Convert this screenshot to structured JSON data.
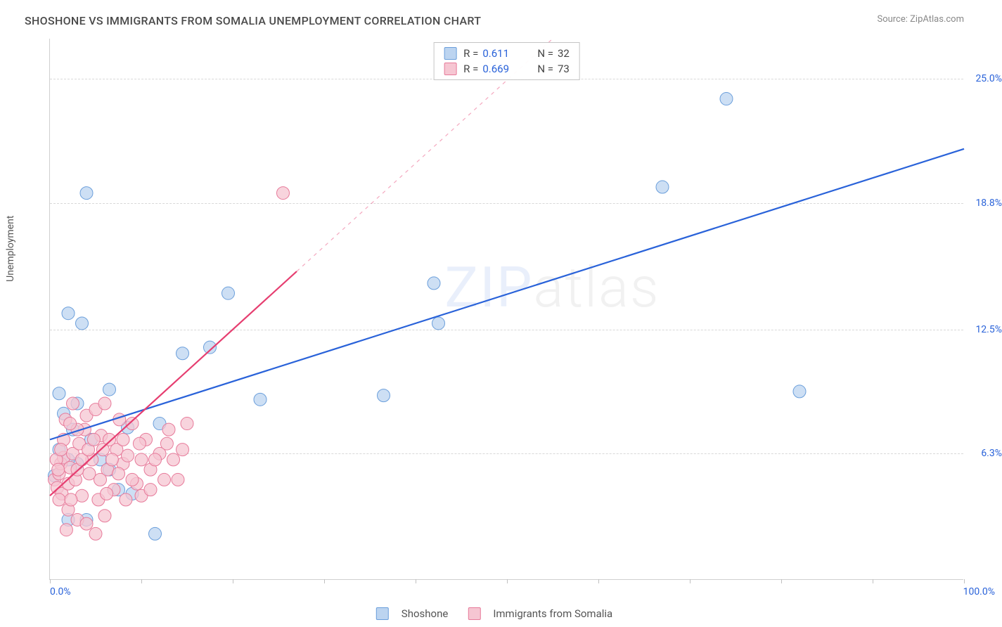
{
  "title": "SHOSHONE VS IMMIGRANTS FROM SOMALIA UNEMPLOYMENT CORRELATION CHART",
  "source_label": "Source: ZipAtlas.com",
  "y_axis_label": "Unemployment",
  "x_axis": {
    "min_label": "0.0%",
    "max_label": "100.0%",
    "min": 0,
    "max": 100,
    "tick_positions": [
      0,
      10,
      20,
      30,
      40,
      50,
      60,
      70,
      80,
      90,
      100
    ]
  },
  "y_axis": {
    "min": 0,
    "max": 27,
    "ticks": [
      {
        "value": 6.3,
        "label": "6.3%"
      },
      {
        "value": 12.5,
        "label": "12.5%"
      },
      {
        "value": 18.8,
        "label": "18.8%"
      },
      {
        "value": 25.0,
        "label": "25.0%"
      }
    ]
  },
  "watermark": {
    "part1": "ZIP",
    "part2": "atlas"
  },
  "series": [
    {
      "id": "shoshone",
      "label": "Shoshone",
      "fill_color": "#bcd4f0",
      "stroke_color": "#6a9edb",
      "line_color": "#2962d9",
      "r_label": "R =",
      "r_value": "0.611",
      "n_label": "N =",
      "n_value": "32",
      "trend": {
        "x1": 0,
        "y1": 7.0,
        "x2": 100,
        "y2": 21.5,
        "solid_end_x": 100
      },
      "marker_radius": 9,
      "points": [
        {
          "x": 1,
          "y": 9.3
        },
        {
          "x": 4,
          "y": 19.3
        },
        {
          "x": 2,
          "y": 13.3
        },
        {
          "x": 3.5,
          "y": 12.8
        },
        {
          "x": 6.5,
          "y": 9.5
        },
        {
          "x": 1.5,
          "y": 8.3
        },
        {
          "x": 2.5,
          "y": 7.5
        },
        {
          "x": 4.5,
          "y": 7.0
        },
        {
          "x": 5.5,
          "y": 6.0
        },
        {
          "x": 6.5,
          "y": 5.5
        },
        {
          "x": 8.5,
          "y": 7.6
        },
        {
          "x": 7.5,
          "y": 4.5
        },
        {
          "x": 2.0,
          "y": 3.0
        },
        {
          "x": 4.0,
          "y": 3.0
        },
        {
          "x": 11.5,
          "y": 2.3
        },
        {
          "x": 14.5,
          "y": 11.3
        },
        {
          "x": 17.5,
          "y": 11.6
        },
        {
          "x": 19.5,
          "y": 14.3
        },
        {
          "x": 23.0,
          "y": 9.0
        },
        {
          "x": 36.5,
          "y": 9.2
        },
        {
          "x": 42.5,
          "y": 12.8
        },
        {
          "x": 42.0,
          "y": 14.8
        },
        {
          "x": 67.0,
          "y": 19.6
        },
        {
          "x": 74.0,
          "y": 24.0
        },
        {
          "x": 82.0,
          "y": 9.4
        },
        {
          "x": 3.0,
          "y": 5.8
        },
        {
          "x": 1.0,
          "y": 6.5
        },
        {
          "x": 2.0,
          "y": 6.0
        },
        {
          "x": 3.0,
          "y": 8.8
        },
        {
          "x": 0.5,
          "y": 5.2
        },
        {
          "x": 12.0,
          "y": 7.8
        },
        {
          "x": 9.0,
          "y": 4.3
        }
      ]
    },
    {
      "id": "somalia",
      "label": "Immigrants from Somalia",
      "fill_color": "#f6c6d2",
      "stroke_color": "#e77a9a",
      "line_color": "#e63e70",
      "r_label": "R =",
      "r_value": "0.669",
      "n_label": "N =",
      "n_value": "73",
      "trend": {
        "x1": 0,
        "y1": 4.2,
        "x2": 55,
        "y2": 27.0,
        "solid_end_x": 27
      },
      "marker_radius": 9,
      "points": [
        {
          "x": 0.5,
          "y": 5.0
        },
        {
          "x": 1.0,
          "y": 5.3
        },
        {
          "x": 1.2,
          "y": 5.8
        },
        {
          "x": 1.5,
          "y": 6.1
        },
        {
          "x": 0.8,
          "y": 4.6
        },
        {
          "x": 1.3,
          "y": 4.3
        },
        {
          "x": 2.0,
          "y": 4.8
        },
        {
          "x": 2.2,
          "y": 5.6
        },
        {
          "x": 2.5,
          "y": 6.3
        },
        {
          "x": 2.8,
          "y": 5.0
        },
        {
          "x": 3.0,
          "y": 5.5
        },
        {
          "x": 3.2,
          "y": 6.8
        },
        {
          "x": 3.5,
          "y": 4.2
        },
        {
          "x": 3.8,
          "y": 7.5
        },
        {
          "x": 4.0,
          "y": 8.2
        },
        {
          "x": 4.3,
          "y": 5.3
        },
        {
          "x": 4.6,
          "y": 6.0
        },
        {
          "x": 5.0,
          "y": 8.5
        },
        {
          "x": 5.3,
          "y": 4.0
        },
        {
          "x": 5.6,
          "y": 7.2
        },
        {
          "x": 6.0,
          "y": 8.8
        },
        {
          "x": 6.3,
          "y": 5.5
        },
        {
          "x": 6.5,
          "y": 7.0
        },
        {
          "x": 7.0,
          "y": 4.5
        },
        {
          "x": 7.3,
          "y": 6.5
        },
        {
          "x": 7.6,
          "y": 8.0
        },
        {
          "x": 8.0,
          "y": 5.8
        },
        {
          "x": 8.5,
          "y": 6.2
        },
        {
          "x": 9.0,
          "y": 7.8
        },
        {
          "x": 9.5,
          "y": 4.8
        },
        {
          "x": 10.0,
          "y": 6.0
        },
        {
          "x": 10.5,
          "y": 7.0
        },
        {
          "x": 11.0,
          "y": 5.5
        },
        {
          "x": 12.0,
          "y": 6.3
        },
        {
          "x": 13.0,
          "y": 7.5
        },
        {
          "x": 14.0,
          "y": 5.0
        },
        {
          "x": 15.0,
          "y": 7.8
        },
        {
          "x": 2.0,
          "y": 3.5
        },
        {
          "x": 3.0,
          "y": 3.0
        },
        {
          "x": 4.0,
          "y": 2.8
        },
        {
          "x": 5.0,
          "y": 2.3
        },
        {
          "x": 6.0,
          "y": 3.2
        },
        {
          "x": 1.8,
          "y": 2.5
        },
        {
          "x": 2.5,
          "y": 8.8
        },
        {
          "x": 1.5,
          "y": 7.0
        },
        {
          "x": 0.7,
          "y": 6.0
        },
        {
          "x": 1.0,
          "y": 4.0
        },
        {
          "x": 3.5,
          "y": 6.0
        },
        {
          "x": 4.2,
          "y": 6.5
        },
        {
          "x": 5.5,
          "y": 5.0
        },
        {
          "x": 6.8,
          "y": 6.0
        },
        {
          "x": 8.0,
          "y": 7.0
        },
        {
          "x": 9.0,
          "y": 5.0
        },
        {
          "x": 10.0,
          "y": 4.2
        },
        {
          "x": 11.5,
          "y": 6.0
        },
        {
          "x": 12.5,
          "y": 5.0
        },
        {
          "x": 13.5,
          "y": 6.0
        },
        {
          "x": 8.3,
          "y": 4.0
        },
        {
          "x": 6.2,
          "y": 4.3
        },
        {
          "x": 2.3,
          "y": 4.0
        },
        {
          "x": 4.8,
          "y": 7.0
        },
        {
          "x": 3.0,
          "y": 7.5
        },
        {
          "x": 1.7,
          "y": 8.0
        },
        {
          "x": 2.2,
          "y": 7.8
        },
        {
          "x": 5.8,
          "y": 6.5
        },
        {
          "x": 7.5,
          "y": 5.3
        },
        {
          "x": 9.8,
          "y": 6.8
        },
        {
          "x": 11.0,
          "y": 4.5
        },
        {
          "x": 12.8,
          "y": 6.8
        },
        {
          "x": 14.5,
          "y": 6.5
        },
        {
          "x": 25.5,
          "y": 19.3
        },
        {
          "x": 1.2,
          "y": 6.5
        },
        {
          "x": 0.9,
          "y": 5.5
        }
      ]
    }
  ],
  "bottom_legend": [
    {
      "series": "shoshone"
    },
    {
      "series": "somalia"
    }
  ]
}
